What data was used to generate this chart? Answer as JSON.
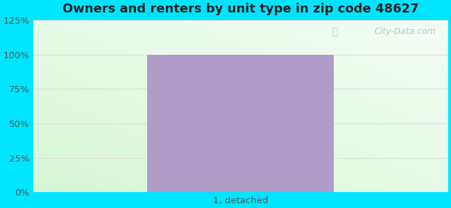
{
  "title": "Owners and renters by unit type in zip code 48627",
  "categories": [
    "1, detached"
  ],
  "values": [
    100
  ],
  "bar_color": "#b09cc8",
  "bar_width": 0.45,
  "ylim": [
    0,
    125
  ],
  "yticks": [
    0,
    25,
    50,
    75,
    100,
    125
  ],
  "ytick_labels": [
    "0%",
    "25%",
    "50%",
    "75%",
    "100%",
    "125%"
  ],
  "title_fontsize": 13,
  "tick_fontsize": 9.5,
  "bg_outer": "#00e5ff",
  "watermark": "City-Data.com",
  "grid_color": "#dddddd",
  "tick_color": "#555555",
  "title_color": "#222222"
}
